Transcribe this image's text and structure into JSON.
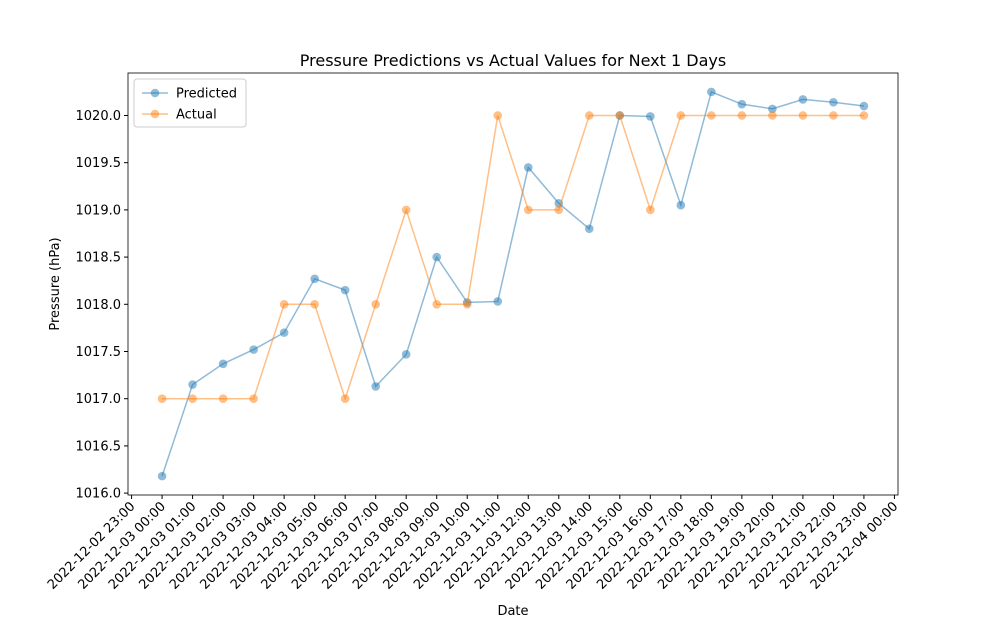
{
  "chart_data": {
    "type": "line",
    "title": "Pressure Predictions vs Actual Values for Next 1 Days",
    "xlabel": "Date",
    "ylabel": "Pressure (hPa)",
    "x": [
      "2022-12-03 00:00",
      "2022-12-03 01:00",
      "2022-12-03 02:00",
      "2022-12-03 03:00",
      "2022-12-03 04:00",
      "2022-12-03 05:00",
      "2022-12-03 06:00",
      "2022-12-03 07:00",
      "2022-12-03 08:00",
      "2022-12-03 09:00",
      "2022-12-03 10:00",
      "2022-12-03 11:00",
      "2022-12-03 12:00",
      "2022-12-03 13:00",
      "2022-12-03 14:00",
      "2022-12-03 15:00",
      "2022-12-03 16:00",
      "2022-12-03 17:00",
      "2022-12-03 18:00",
      "2022-12-03 19:00",
      "2022-12-03 20:00",
      "2022-12-03 21:00",
      "2022-12-03 22:00",
      "2022-12-03 23:00"
    ],
    "series": [
      {
        "name": "Predicted",
        "color": "#1f77b4",
        "values": [
          1016.18,
          1017.15,
          1017.37,
          1017.52,
          1017.7,
          1018.27,
          1018.15,
          1017.13,
          1017.47,
          1018.5,
          1018.02,
          1018.03,
          1019.45,
          1019.07,
          1018.8,
          1020.0,
          1019.99,
          1019.05,
          1020.25,
          1020.12,
          1020.07,
          1020.17,
          1020.14,
          1020.1
        ]
      },
      {
        "name": "Actual",
        "color": "#ff7f0e",
        "values": [
          1017,
          1017,
          1017,
          1017,
          1018,
          1018,
          1017,
          1018,
          1019,
          1018,
          1018,
          1020,
          1019,
          1019,
          1020,
          1020,
          1019,
          1020,
          1020,
          1020,
          1020,
          1020,
          1020,
          1020
        ]
      }
    ],
    "xlim": [
      "2022-12-02 22:53",
      "2022-12-04 00:07"
    ],
    "xticks": [
      "2022-12-02 23:00",
      "2022-12-03 00:00",
      "2022-12-03 01:00",
      "2022-12-03 02:00",
      "2022-12-03 03:00",
      "2022-12-03 04:00",
      "2022-12-03 05:00",
      "2022-12-03 06:00",
      "2022-12-03 07:00",
      "2022-12-03 08:00",
      "2022-12-03 09:00",
      "2022-12-03 10:00",
      "2022-12-03 11:00",
      "2022-12-03 12:00",
      "2022-12-03 13:00",
      "2022-12-03 14:00",
      "2022-12-03 15:00",
      "2022-12-03 16:00",
      "2022-12-03 17:00",
      "2022-12-03 18:00",
      "2022-12-03 19:00",
      "2022-12-03 20:00",
      "2022-12-03 21:00",
      "2022-12-03 22:00",
      "2022-12-03 23:00",
      "2022-12-04 00:00"
    ],
    "ylim": [
      1015.98,
      1020.45
    ],
    "yticks": [
      {
        "value": 1016,
        "label": "1016.0"
      },
      1016.5,
      {
        "value": 1017,
        "label": "1017.0"
      },
      1017.5,
      {
        "value": 1018,
        "label": "1018.0"
      },
      1018.5,
      {
        "value": 1019,
        "label": "1019.0"
      },
      1019.5,
      {
        "value": 1020,
        "label": "1020.0"
      }
    ],
    "legend": "upper left",
    "grid": false
  }
}
